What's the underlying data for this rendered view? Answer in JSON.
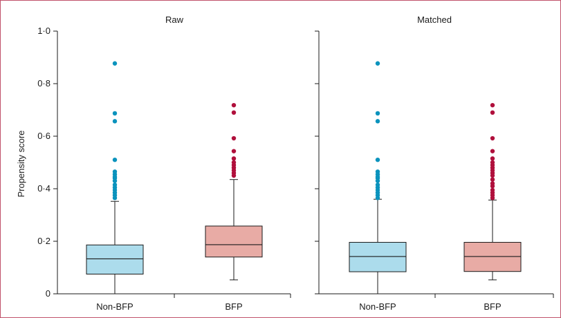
{
  "chart_data": [
    {
      "type": "box",
      "title": "Raw",
      "ylabel": "Propensity score",
      "ylim": [
        0,
        1.0
      ],
      "yticks": [
        "0",
        "0·2",
        "0·4",
        "0·6",
        "0·8",
        "1·0"
      ],
      "categories": [
        "Non-BFP",
        "BFP"
      ],
      "colors": {
        "Non-BFP": "#acdcec",
        "BFP": "#e8aba5"
      },
      "outlier_colors": {
        "Non-BFP": "#0b93bd",
        "BFP": "#b0103c"
      },
      "boxes": [
        {
          "category": "Non-BFP",
          "whisker_low": 0.0,
          "q1": 0.075,
          "median": 0.133,
          "q3": 0.186,
          "whisker_high": 0.352,
          "outliers": [
            0.877,
            0.687,
            0.657,
            0.51,
            0.465,
            0.455,
            0.445,
            0.44,
            0.43,
            0.415,
            0.405,
            0.395,
            0.385,
            0.375,
            0.365
          ]
        },
        {
          "category": "BFP",
          "whisker_low": 0.053,
          "q1": 0.14,
          "median": 0.187,
          "q3": 0.258,
          "whisker_high": 0.435,
          "outliers": [
            0.718,
            0.69,
            0.592,
            0.543,
            0.515,
            0.5,
            0.49,
            0.48,
            0.47,
            0.46,
            0.45
          ]
        }
      ]
    },
    {
      "type": "box",
      "title": "Matched",
      "ylim": [
        0,
        1.0
      ],
      "categories": [
        "Non-BFP",
        "BFP"
      ],
      "colors": {
        "Non-BFP": "#acdcec",
        "BFP": "#e8aba5"
      },
      "outlier_colors": {
        "Non-BFP": "#0b93bd",
        "BFP": "#b0103c"
      },
      "boxes": [
        {
          "category": "Non-BFP",
          "whisker_low": 0.0,
          "q1": 0.084,
          "median": 0.142,
          "q3": 0.196,
          "whisker_high": 0.36,
          "outliers": [
            0.877,
            0.687,
            0.657,
            0.51,
            0.465,
            0.455,
            0.445,
            0.44,
            0.43,
            0.415,
            0.405,
            0.395,
            0.385,
            0.375,
            0.365
          ]
        },
        {
          "category": "BFP",
          "whisker_low": 0.053,
          "q1": 0.085,
          "median": 0.142,
          "q3": 0.196,
          "whisker_high": 0.357,
          "outliers": [
            0.718,
            0.69,
            0.592,
            0.543,
            0.515,
            0.5,
            0.49,
            0.48,
            0.47,
            0.46,
            0.45,
            0.435,
            0.42,
            0.41,
            0.395,
            0.385,
            0.375,
            0.365
          ]
        }
      ]
    }
  ]
}
